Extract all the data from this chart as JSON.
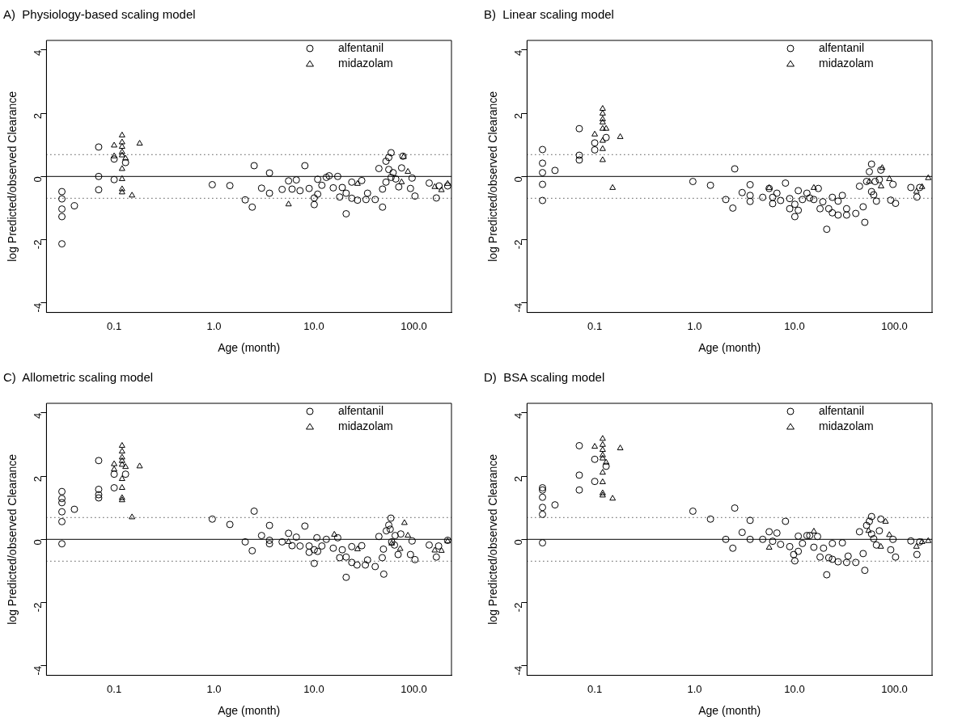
{
  "chart_data": [
    {
      "type": "scatter",
      "title": "A)  Physiology-based scaling model",
      "xlabel": "Age (month)",
      "ylabel": "log Predicted/observed Clearance",
      "log": "x",
      "grid": false,
      "legend": "top right",
      "xlim": [
        0.021,
        238
      ],
      "xticks": [
        {
          "value": 0.1,
          "label": "0.1"
        },
        {
          "value": 1,
          "label": "1.0"
        },
        {
          "value": 10,
          "label": "10.0"
        },
        {
          "value": 100,
          "label": "100.0"
        }
      ],
      "ylim": [
        -4.3,
        4.3
      ],
      "yticks": [
        -4,
        -2,
        0,
        2,
        4
      ],
      "ref_lines": [
        {
          "axis": "y",
          "value": 0,
          "line_style": "solid"
        },
        {
          "axis": "y",
          "value": 0.69,
          "line_style": "dotted"
        },
        {
          "axis": "y",
          "value": -0.69,
          "line_style": "dotted"
        }
      ],
      "series": [
        {
          "name": "alfentanil",
          "color": "#000000",
          "marker": "circle",
          "x": [
            0.03,
            0.03,
            0.03,
            0.03,
            0.03,
            0.04,
            0.07,
            0.07,
            0.07,
            0.1,
            0.1,
            0.13,
            0.96,
            1.44,
            2.05,
            2.41,
            2.52,
            2.99,
            3.59,
            3.59,
            4.8,
            5.57,
            6.04,
            6.66,
            7.25,
            8.11,
            8.95,
            10.07,
            10.07,
            10.9,
            10.9,
            12,
            13.3,
            14.2,
            17.3,
            15.6,
            18.1,
            19.2,
            21,
            21,
            23.9,
            23.9,
            27.3,
            30.1,
            33.2,
            34.4,
            41,
            44.7,
            48.6,
            48.6,
            52.6,
            52.6,
            56.1,
            59.2,
            56.1,
            59.2,
            62,
            65.9,
            70.6,
            75.4,
            77.8,
            92.5,
            96.2,
            102.6,
            142.5,
            168,
            179,
            218
          ],
          "values": [
            -0.48,
            -0.71,
            -1.03,
            -1.27,
            -2.13,
            -0.93,
            0.93,
            0,
            -0.42,
            0.55,
            -0.1,
            0.44,
            -0.26,
            -0.29,
            -0.74,
            -0.97,
            0.34,
            -0.37,
            0.11,
            -0.53,
            -0.41,
            -0.14,
            -0.4,
            -0.11,
            -0.45,
            0.34,
            -0.38,
            -0.68,
            -0.89,
            -0.09,
            -0.56,
            -0.28,
            -0.03,
            0.02,
            0,
            -0.36,
            -0.65,
            -0.35,
            -0.53,
            -1.18,
            -0.18,
            -0.69,
            -0.75,
            -0.13,
            -0.73,
            -0.53,
            -0.73,
            0.25,
            -0.97,
            -0.4,
            0.48,
            -0.18,
            0.6,
            0.75,
            0.22,
            -0.03,
            0.12,
            -0.08,
            -0.33,
            0.27,
            0.64,
            -0.38,
            -0.05,
            -0.62,
            -0.21,
            -0.68,
            -0.3,
            -0.3
          ]
        },
        {
          "name": "midazolam",
          "color": "#000000",
          "marker": "triangle",
          "x": [
            0.1,
            0.1,
            0.12,
            0.12,
            0.12,
            0.12,
            0.12,
            0.12,
            0.12,
            0.12,
            0.12,
            0.13,
            0.151,
            0.18,
            5.57,
            27.3,
            75.4,
            79,
            87.2,
            162,
            189,
            218
          ],
          "values": [
            0.98,
            0.64,
            1.3,
            1.08,
            0.94,
            0.77,
            0.67,
            0.24,
            -0.08,
            -0.4,
            -0.5,
            0.57,
            -0.6,
            1.04,
            -0.88,
            -0.23,
            -0.18,
            0.62,
            0.15,
            -0.33,
            -0.43,
            -0.23
          ]
        }
      ]
    },
    {
      "type": "scatter",
      "title": "B)  Linear scaling model",
      "xlabel": "Age (month)",
      "ylabel": "log Predicted/observed Clearance",
      "log": "x",
      "grid": false,
      "legend": "top right",
      "xlim": [
        0.021,
        238
      ],
      "xticks": [
        {
          "value": 0.1,
          "label": "0.1"
        },
        {
          "value": 1,
          "label": "1.0"
        },
        {
          "value": 10,
          "label": "10.0"
        },
        {
          "value": 100,
          "label": "100.0"
        }
      ],
      "ylim": [
        -4.3,
        4.3
      ],
      "yticks": [
        -4,
        -2,
        0,
        2,
        4
      ],
      "ref_lines": [
        {
          "axis": "y",
          "value": 0,
          "line_style": "solid"
        },
        {
          "axis": "y",
          "value": 0.69,
          "line_style": "dotted"
        },
        {
          "axis": "y",
          "value": -0.69,
          "line_style": "dotted"
        }
      ],
      "series": [
        {
          "name": "alfentanil",
          "color": "#000000",
          "marker": "circle",
          "x": [
            0.03,
            0.03,
            0.03,
            0.03,
            0.03,
            0.04,
            0.07,
            0.07,
            0.07,
            0.1,
            0.1,
            0.13,
            0.96,
            1.44,
            2.05,
            2.41,
            2.52,
            2.99,
            3.59,
            3.59,
            3.59,
            4.8,
            5.57,
            6.04,
            6.04,
            6.66,
            7.25,
            8.11,
            8.95,
            8.95,
            10.07,
            10.07,
            10.9,
            10.9,
            12,
            13.3,
            14.2,
            15.6,
            17.3,
            18,
            19.2,
            21,
            22,
            23.9,
            23.9,
            27.3,
            27.3,
            30.1,
            33.2,
            33.2,
            41,
            44.7,
            48.6,
            50.5,
            52.6,
            56.1,
            59,
            59,
            62,
            64,
            66,
            70.6,
            73,
            91.8,
            96.8,
            102.6,
            146,
            168,
            179
          ],
          "values": [
            0.85,
            0.42,
            0.12,
            -0.25,
            -0.76,
            0.19,
            1.51,
            0.67,
            0.52,
            1.06,
            0.84,
            1.23,
            -0.16,
            -0.28,
            -0.73,
            -1,
            0.24,
            -0.51,
            -0.26,
            -0.6,
            -0.79,
            -0.66,
            -0.38,
            -0.86,
            -0.66,
            -0.53,
            -0.76,
            -0.21,
            -0.7,
            -1.02,
            -1.27,
            -0.88,
            -0.45,
            -1.07,
            -0.73,
            -0.53,
            -0.68,
            -0.73,
            -0.38,
            -1.02,
            -0.8,
            -1.67,
            -1.02,
            -1.15,
            -0.66,
            -1.22,
            -0.78,
            -0.6,
            -1.22,
            -1.02,
            -1.17,
            -0.31,
            -0.96,
            -1.45,
            -0.16,
            0.15,
            0.39,
            -0.48,
            -0.58,
            -0.16,
            -0.78,
            -0.1,
            0.2,
            -0.75,
            -0.25,
            -0.85,
            -0.35,
            -0.65,
            -0.35
          ]
        },
        {
          "name": "midazolam",
          "color": "#000000",
          "marker": "triangle",
          "x": [
            0.1,
            0.12,
            0.12,
            0.12,
            0.12,
            0.12,
            0.12,
            0.12,
            0.12,
            0.13,
            0.151,
            0.18,
            5.57,
            15.6,
            56,
            73.5,
            75.4,
            88.9,
            166,
            189,
            218
          ],
          "values": [
            1.33,
            2.14,
            1.99,
            1.81,
            1.71,
            1.51,
            1.13,
            0.87,
            0.52,
            1.51,
            -0.36,
            1.25,
            -0.36,
            -0.36,
            -0.16,
            -0.31,
            0.27,
            -0.08,
            -0.48,
            -0.33,
            -0.05
          ]
        }
      ]
    },
    {
      "type": "scatter",
      "title": "C)  Allometric scaling model",
      "xlabel": "Age (month)",
      "ylabel": "log Predicted/observed Clearance",
      "log": "x",
      "grid": false,
      "legend": "top right",
      "xlim": [
        0.021,
        238
      ],
      "xticks": [
        {
          "value": 0.1,
          "label": "0.1"
        },
        {
          "value": 1,
          "label": "1.0"
        },
        {
          "value": 10,
          "label": "10.0"
        },
        {
          "value": 100,
          "label": "100.0"
        }
      ],
      "ylim": [
        -4.3,
        4.3
      ],
      "yticks": [
        -4,
        -2,
        0,
        2,
        4
      ],
      "ref_lines": [
        {
          "axis": "y",
          "value": 0,
          "line_style": "solid"
        },
        {
          "axis": "y",
          "value": 0.69,
          "line_style": "dotted"
        },
        {
          "axis": "y",
          "value": -0.69,
          "line_style": "dotted"
        }
      ],
      "series": [
        {
          "name": "alfentanil",
          "color": "#000000",
          "marker": "circle",
          "x": [
            0.03,
            0.03,
            0.03,
            0.03,
            0.03,
            0.03,
            0.04,
            0.07,
            0.07,
            0.07,
            0.07,
            0.1,
            0.1,
            0.13,
            0.96,
            1.44,
            2.05,
            2.41,
            2.52,
            2.99,
            3.59,
            3.59,
            3.59,
            4.8,
            5.57,
            6.04,
            6.66,
            7.25,
            8.11,
            8.95,
            8.95,
            10.07,
            10.07,
            10.7,
            10.9,
            12,
            13.3,
            15.6,
            17.3,
            18.1,
            19.2,
            21,
            21,
            23.9,
            23.9,
            27,
            30.1,
            32.7,
            34.4,
            41,
            44.7,
            48.3,
            50,
            49.6,
            53,
            56.1,
            58.9,
            58,
            60,
            64,
            65,
            69.6,
            74,
            92.5,
            96.2,
            102.6,
            142.5,
            168,
            177,
            218
          ],
          "values": [
            1.51,
            1.29,
            1.16,
            0.87,
            0.56,
            -0.14,
            0.95,
            2.49,
            1.58,
            1.41,
            1.31,
            2.06,
            1.63,
            2.06,
            0.64,
            0.47,
            -0.08,
            -0.36,
            0.89,
            0.12,
            0.44,
            -0.03,
            -0.14,
            -0.08,
            0.19,
            -0.2,
            0.07,
            -0.21,
            0.42,
            -0.21,
            -0.41,
            -0.33,
            -0.76,
            0.05,
            -0.38,
            -0.21,
            0,
            -0.28,
            0.05,
            -0.58,
            -0.33,
            -0.56,
            -1.2,
            -0.23,
            -0.73,
            -0.81,
            -0.2,
            -0.81,
            -0.65,
            -0.86,
            0.09,
            -0.58,
            -1.1,
            -0.31,
            0.27,
            0.45,
            0.67,
            0.32,
            -0.08,
            -0.18,
            0.12,
            -0.48,
            0.17,
            -0.48,
            -0.05,
            -0.64,
            -0.18,
            -0.56,
            -0.21,
            -0.03
          ]
        },
        {
          "name": "midazolam",
          "color": "#000000",
          "marker": "triangle",
          "x": [
            0.1,
            0.1,
            0.12,
            0.12,
            0.12,
            0.12,
            0.12,
            0.12,
            0.12,
            0.12,
            0.12,
            0.13,
            0.151,
            0.18,
            5.57,
            16,
            27.3,
            60,
            73,
            80.5,
            87.2,
            162,
            189,
            218
          ],
          "values": [
            2.38,
            2.21,
            2.96,
            2.78,
            2.59,
            2.48,
            2.36,
            1.91,
            1.63,
            1.31,
            1.24,
            2.29,
            0.7,
            2.31,
            -0.08,
            0.15,
            -0.31,
            -0.13,
            -0.3,
            0.52,
            0.12,
            -0.35,
            -0.36,
            -0.06
          ]
        }
      ]
    },
    {
      "type": "scatter",
      "title": "D)  BSA scaling model",
      "xlabel": "Age (month)",
      "ylabel": "log Predicted/observed Clearance",
      "log": "x",
      "grid": false,
      "legend": "top right",
      "xlim": [
        0.021,
        238
      ],
      "xticks": [
        {
          "value": 0.1,
          "label": "0.1"
        },
        {
          "value": 1,
          "label": "1.0"
        },
        {
          "value": 10,
          "label": "10.0"
        },
        {
          "value": 100,
          "label": "100.0"
        }
      ],
      "ylim": [
        -4.3,
        4.3
      ],
      "yticks": [
        -4,
        -2,
        0,
        2,
        4
      ],
      "ref_lines": [
        {
          "axis": "y",
          "value": 0,
          "line_style": "solid"
        },
        {
          "axis": "y",
          "value": 0.69,
          "line_style": "dotted"
        },
        {
          "axis": "y",
          "value": -0.69,
          "line_style": "dotted"
        }
      ],
      "series": [
        {
          "name": "alfentanil",
          "color": "#000000",
          "marker": "circle",
          "x": [
            0.03,
            0.03,
            0.03,
            0.03,
            0.03,
            0.03,
            0.04,
            0.07,
            0.07,
            0.07,
            0.1,
            0.1,
            0.13,
            0.96,
            1.44,
            2.05,
            2.41,
            2.52,
            2.99,
            3.59,
            3.59,
            4.8,
            5.57,
            6.04,
            6.66,
            7.25,
            8.11,
            8.95,
            9.81,
            10.07,
            10.9,
            10.9,
            12,
            13.3,
            14.2,
            15.6,
            17,
            18,
            19.5,
            21,
            22,
            23.9,
            23.9,
            27.3,
            30.1,
            33.2,
            34.4,
            41,
            44.7,
            48.6,
            50.5,
            52.6,
            56.1,
            59,
            59,
            62,
            66,
            70.6,
            73,
            91.8,
            96.8,
            102.6,
            146,
            168,
            179
          ],
          "values": [
            1.63,
            1.56,
            1.33,
            1.01,
            0.79,
            -0.11,
            1.09,
            2.96,
            2.03,
            1.56,
            2.53,
            1.83,
            2.31,
            0.89,
            0.64,
            0,
            -0.28,
            0.99,
            0.22,
            0.6,
            0,
            0,
            0.24,
            -0.06,
            0.2,
            -0.16,
            0.57,
            -0.23,
            -0.48,
            -0.68,
            0.1,
            -0.38,
            -0.13,
            0.12,
            0.12,
            -0.25,
            0.09,
            -0.56,
            -0.28,
            -1.12,
            -0.58,
            -0.13,
            -0.63,
            -0.71,
            -0.11,
            -0.73,
            -0.53,
            -0.73,
            0.24,
            -0.45,
            -0.98,
            0.44,
            0.57,
            0.72,
            0.17,
            0.02,
            -0.18,
            0.27,
            0.64,
            -0.33,
            0,
            -0.56,
            -0.05,
            -0.48,
            -0.08
          ]
        },
        {
          "name": "midazolam",
          "color": "#000000",
          "marker": "triangle",
          "x": [
            0.1,
            0.12,
            0.12,
            0.12,
            0.12,
            0.12,
            0.12,
            0.12,
            0.12,
            0.12,
            0.13,
            0.151,
            0.18,
            5.57,
            15.6,
            55.1,
            73,
            81.5,
            88.9,
            166,
            189,
            218
          ],
          "values": [
            2.93,
            3.18,
            2.99,
            2.83,
            2.66,
            2.56,
            2.11,
            1.81,
            1.46,
            1.39,
            2.43,
            1.29,
            2.88,
            -0.26,
            0.25,
            0.27,
            -0.23,
            0.56,
            0.14,
            -0.23,
            -0.08,
            -0.05
          ]
        }
      ]
    }
  ]
}
